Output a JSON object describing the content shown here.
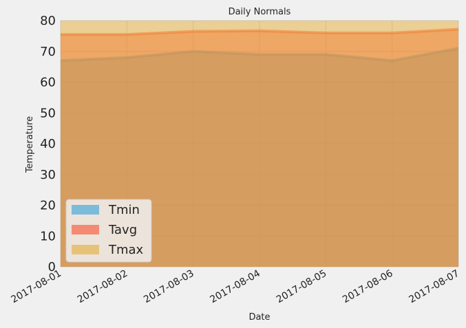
{
  "chart_data": {
    "type": "area",
    "title": "Daily Normals",
    "xlabel": "Date",
    "ylabel": "Temperature",
    "x": [
      "2017-08-01",
      "2017-08-02",
      "2017-08-03",
      "2017-08-04",
      "2017-08-05",
      "2017-08-06",
      "2017-08-07"
    ],
    "ylim": [
      0,
      80
    ],
    "yticks": [
      0,
      10,
      20,
      30,
      40,
      50,
      60,
      70,
      80
    ],
    "grid": true,
    "legend_position": "lower-left",
    "stacked": false,
    "series": [
      {
        "name": "Tmin",
        "values": [
          67.0,
          68.0,
          70.0,
          69.0,
          69.0,
          67.0,
          71.0
        ],
        "fill": "#30a2da",
        "line": "#30a2da"
      },
      {
        "name": "Tavg",
        "values": [
          75.5,
          75.5,
          76.5,
          76.7,
          76.0,
          76.0,
          77.2
        ],
        "fill": "#fc4f30",
        "line": "#fc4f30"
      },
      {
        "name": "Tmax",
        "values": [
          83.0,
          83.0,
          84.0,
          84.0,
          84.0,
          84.0,
          85.0
        ],
        "fill": "#e5ae38",
        "line": "#e5ae38"
      }
    ]
  }
}
